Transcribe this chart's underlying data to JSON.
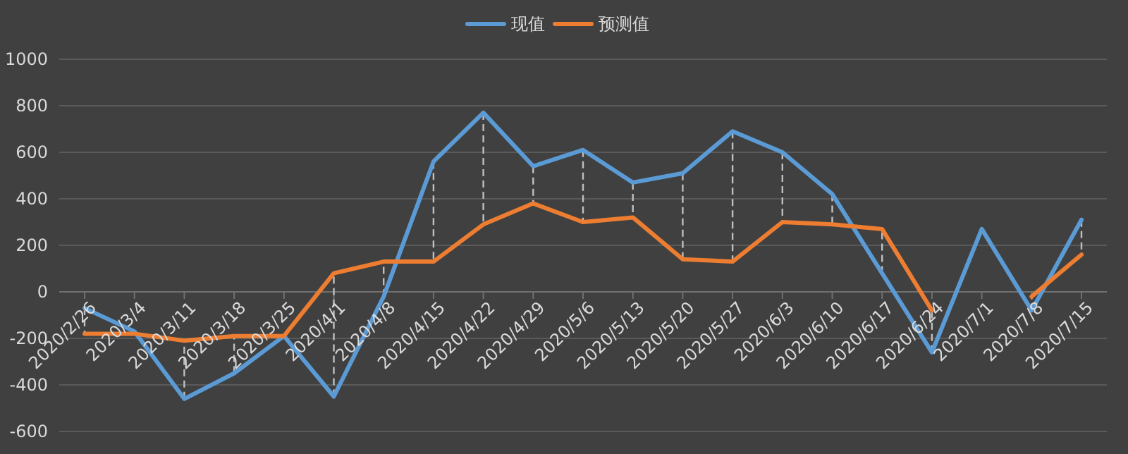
{
  "chart_data": {
    "type": "line",
    "categories": [
      "2020/2/26",
      "2020/3/4",
      "2020/3/11",
      "2020/3/18",
      "2020/3/25",
      "2020/4/1",
      "2020/4/8",
      "2020/4/15",
      "2020/4/22",
      "2020/4/29",
      "2020/5/6",
      "2020/5/13",
      "2020/5/20",
      "2020/5/27",
      "2020/6/3",
      "2020/6/10",
      "2020/6/17",
      "2020/6/24",
      "2020/7/1",
      "2020/7/8",
      "2020/7/15"
    ],
    "series": [
      {
        "name": "现值",
        "color": "#5b9bd5",
        "values": [
          -70,
          -170,
          -460,
          -350,
          -190,
          -450,
          -20,
          560,
          770,
          540,
          610,
          470,
          510,
          690,
          600,
          420,
          80,
          -260,
          270,
          -80,
          310
        ]
      },
      {
        "name": "预测值",
        "color": "#ed7d31",
        "values": [
          -180,
          -180,
          -210,
          -190,
          -190,
          80,
          130,
          130,
          290,
          380,
          300,
          320,
          140,
          130,
          300,
          290,
          270,
          -80,
          null,
          -20,
          160
        ]
      }
    ],
    "ylim": [
      -600,
      1000
    ],
    "yticks": [
      -600,
      -400,
      -200,
      0,
      200,
      400,
      600,
      800,
      1000
    ],
    "grid": "y",
    "legend": "top",
    "marker": "none",
    "line_style": "solid"
  }
}
